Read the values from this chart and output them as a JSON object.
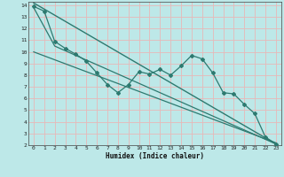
{
  "xlabel": "Humidex (Indice chaleur)",
  "ylabel": "",
  "xlim": [
    -0.5,
    23.5
  ],
  "ylim": [
    2,
    14.3
  ],
  "xticks": [
    0,
    1,
    2,
    3,
    4,
    5,
    6,
    7,
    8,
    9,
    10,
    11,
    12,
    13,
    14,
    15,
    16,
    17,
    18,
    19,
    20,
    21,
    22,
    23
  ],
  "yticks": [
    2,
    3,
    4,
    5,
    6,
    7,
    8,
    9,
    10,
    11,
    12,
    13,
    14
  ],
  "bg_color": "#bde8e8",
  "grid_color": "#e8b8b8",
  "line_color": "#2d7a70",
  "line1_x": [
    0,
    1,
    2,
    3,
    4,
    5,
    6,
    7,
    8,
    9,
    10,
    11,
    12,
    13,
    14,
    15,
    16,
    17,
    18,
    19,
    20,
    21,
    22,
    23
  ],
  "line1_y": [
    13.9,
    13.5,
    10.9,
    10.3,
    9.8,
    9.2,
    8.2,
    7.2,
    6.5,
    7.2,
    8.3,
    8.1,
    8.5,
    8.0,
    8.8,
    9.7,
    9.4,
    8.2,
    6.5,
    6.4,
    5.5,
    4.7,
    2.7,
    2.1
  ],
  "line2_x": [
    0,
    23
  ],
  "line2_y": [
    14.2,
    2.1
  ],
  "line3_x": [
    0,
    2,
    23
  ],
  "line3_y": [
    13.8,
    10.5,
    2.1
  ],
  "line4_x": [
    0,
    23
  ],
  "line4_y": [
    10.0,
    2.2
  ]
}
